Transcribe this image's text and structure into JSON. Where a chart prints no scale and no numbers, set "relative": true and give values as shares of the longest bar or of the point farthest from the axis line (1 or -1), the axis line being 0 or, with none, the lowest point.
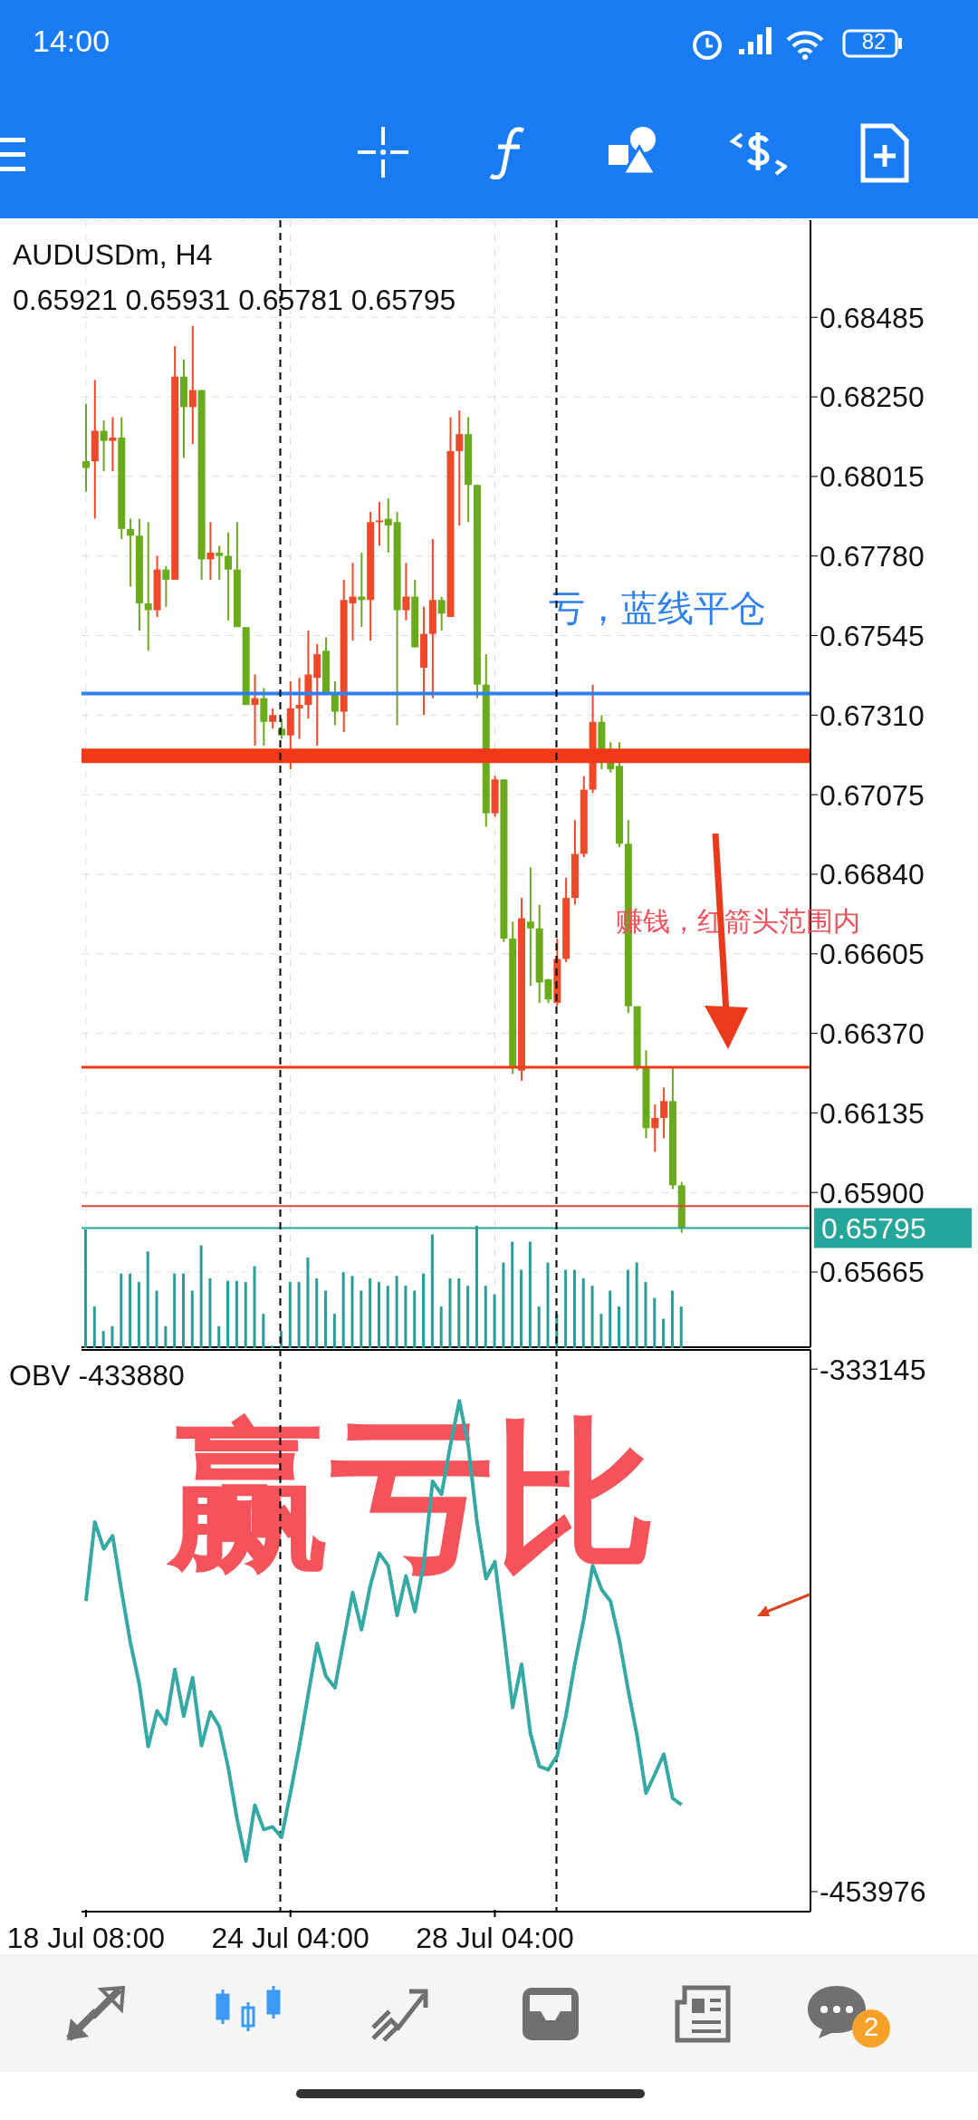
{
  "chart_data": [
    {
      "type": "candlestick",
      "title": "AUDUSDm, H4",
      "subtitle": "0.65921 0.65931 0.65781 0.65795",
      "categories": [
        null,
        null,
        null,
        null,
        null,
        null,
        null,
        null,
        null,
        null,
        null,
        null,
        null,
        null,
        null,
        null,
        null,
        null,
        null,
        null,
        null,
        null,
        null,
        null,
        null,
        null,
        null,
        null,
        null,
        null,
        null,
        null,
        null,
        null,
        null,
        null,
        null,
        null,
        null,
        null,
        null,
        null,
        null,
        null,
        null,
        null,
        null,
        null,
        null,
        null,
        null,
        null,
        null,
        null,
        null,
        null,
        null,
        null,
        null,
        null,
        null,
        null,
        null,
        null,
        null,
        null,
        null,
        null,
        null,
        null,
        null,
        null,
        null,
        null,
        null,
        null,
        null,
        null,
        null,
        null,
        null,
        null
      ],
      "ohlc": [
        [
          0.6806,
          0.6823,
          0.6797,
          0.6804
        ],
        [
          0.6806,
          0.683,
          0.6789,
          0.6815
        ],
        [
          0.6815,
          0.6818,
          0.6803,
          0.6812
        ],
        [
          0.6812,
          0.6819,
          0.6803,
          0.6813
        ],
        [
          0.6813,
          0.6819,
          0.6783,
          0.6786
        ],
        [
          0.6786,
          0.6789,
          0.6769,
          0.6784
        ],
        [
          0.6784,
          0.6789,
          0.6756,
          0.6764
        ],
        [
          0.6764,
          0.6788,
          0.675,
          0.6762
        ],
        [
          0.6762,
          0.6778,
          0.676,
          0.6774
        ],
        [
          0.6774,
          0.6775,
          0.6763,
          0.6771
        ],
        [
          0.6771,
          0.684,
          0.6771,
          0.6831
        ],
        [
          0.6831,
          0.6836,
          0.6807,
          0.6822
        ],
        [
          0.6822,
          0.6846,
          0.6811,
          0.6827
        ],
        [
          0.6827,
          0.6827,
          0.6771,
          0.6777
        ],
        [
          0.6777,
          0.6788,
          0.6771,
          0.6779
        ],
        [
          0.6779,
          0.6781,
          0.6771,
          0.6778
        ],
        [
          0.6778,
          0.6785,
          0.6759,
          0.6774
        ],
        [
          0.6774,
          0.6788,
          0.6757,
          0.6757
        ],
        [
          0.6757,
          0.6757,
          0.6734,
          0.6734
        ],
        [
          0.6734,
          0.6743,
          0.6722,
          0.6736
        ],
        [
          0.6736,
          0.6739,
          0.6722,
          0.6729
        ],
        [
          0.6729,
          0.6733,
          0.6727,
          0.6731
        ],
        [
          0.6727,
          0.673,
          0.6724,
          0.6725
        ],
        [
          0.6725,
          0.6741,
          0.6715,
          0.6733
        ],
        [
          0.6733,
          0.6742,
          0.6724,
          0.6734
        ],
        [
          0.6734,
          0.6756,
          0.673,
          0.6743
        ],
        [
          0.6742,
          0.6752,
          0.6722,
          0.6749
        ],
        [
          0.675,
          0.6754,
          0.6737,
          0.6737
        ],
        [
          0.6737,
          0.6741,
          0.6728,
          0.6732
        ],
        [
          0.6732,
          0.6771,
          0.6726,
          0.6765
        ],
        [
          0.6764,
          0.6776,
          0.6753,
          0.6766
        ],
        [
          0.6766,
          0.6779,
          0.6757,
          0.6765
        ],
        [
          0.6765,
          0.6791,
          0.6753,
          0.6788
        ],
        [
          0.6788,
          0.6794,
          0.6781,
          0.67885
        ],
        [
          0.6789,
          0.6795,
          0.6779,
          0.6787
        ],
        [
          0.6788,
          0.6791,
          0.6728,
          0.6762
        ],
        [
          0.6762,
          0.6776,
          0.6759,
          0.6766
        ],
        [
          0.6766,
          0.6771,
          0.6751,
          0.6751
        ],
        [
          0.6745,
          0.6763,
          0.6731,
          0.6755
        ],
        [
          0.6755,
          0.6783,
          0.6736,
          0.6765
        ],
        [
          0.6765,
          0.6766,
          0.6756,
          0.6761
        ],
        [
          0.676,
          0.6819,
          0.676,
          0.6809
        ],
        [
          0.6809,
          0.6821,
          0.6787,
          0.6814
        ],
        [
          0.6814,
          0.6819,
          0.6788,
          0.6799
        ],
        [
          0.6799,
          0.6799,
          0.6736,
          0.674
        ],
        [
          0.674,
          0.6749,
          0.6698,
          0.6702
        ],
        [
          0.6702,
          0.6713,
          0.6701,
          0.6712
        ],
        [
          0.6712,
          0.6712,
          0.6664,
          0.6665
        ],
        [
          0.6665,
          0.667,
          0.6625,
          0.6627
        ],
        [
          0.6626,
          0.6677,
          0.6623,
          0.6671
        ],
        [
          0.667,
          0.6686,
          0.6651,
          0.6668
        ],
        [
          0.6668,
          0.6675,
          0.6646,
          0.6652
        ],
        [
          0.6653,
          0.6653,
          0.6646,
          0.6647
        ],
        [
          0.6646,
          0.6665,
          0.6645,
          0.6659
        ],
        [
          0.6659,
          0.6683,
          0.6658,
          0.6677
        ],
        [
          0.6677,
          0.67,
          0.6675,
          0.669
        ],
        [
          0.669,
          0.6713,
          0.6689,
          0.6709
        ],
        [
          0.6709,
          0.674,
          0.6708,
          0.6729
        ],
        [
          0.6729,
          0.6731,
          0.6715,
          0.6721
        ],
        [
          0.6721,
          0.6723,
          0.6714,
          0.6715
        ],
        [
          0.6716,
          0.6723,
          0.6692,
          0.6693
        ],
        [
          0.6693,
          0.67,
          0.6643,
          0.6645
        ],
        [
          0.6645,
          0.6645,
          0.6626,
          0.6627
        ],
        [
          0.6627,
          0.6632,
          0.6606,
          0.6609
        ],
        [
          0.6609,
          0.6616,
          0.6602,
          0.6612
        ],
        [
          0.6612,
          0.6621,
          0.6606,
          0.6617
        ],
        [
          0.6617,
          0.6627,
          0.6591,
          0.65921
        ],
        [
          0.65921,
          0.65931,
          0.65781,
          0.65795
        ],
        null,
        null,
        null,
        null,
        null,
        null,
        null,
        null,
        null,
        null,
        null,
        null,
        null,
        null
      ],
      "colors": [
        "#6aab1c",
        "#ee4a2a",
        "#6aab1c",
        "#ee4a2a",
        "#6aab1c",
        "#6aab1c",
        "#6aab1c",
        "#6aab1c",
        "#ee4a2a",
        "#6aab1c",
        "#ee4a2a",
        "#6aab1c",
        "#ee4a2a",
        "#6aab1c",
        "#ee4a2a",
        "#6aab1c",
        "#6aab1c",
        "#6aab1c",
        "#6aab1c",
        "#ee4a2a",
        "#6aab1c",
        "#ee4a2a",
        "#6aab1c",
        "#ee4a2a",
        "#ee4a2a",
        "#ee4a2a",
        "#ee4a2a",
        "#6aab1c",
        "#6aab1c",
        "#ee4a2a",
        "#ee4a2a",
        "#6aab1c",
        "#ee4a2a",
        "#ee4a2a",
        "#6aab1c",
        "#6aab1c",
        "#ee4a2a",
        "#6aab1c",
        "#ee4a2a",
        "#ee4a2a",
        "#6aab1c",
        "#ee4a2a",
        "#ee4a2a",
        "#6aab1c",
        "#6aab1c",
        "#6aab1c",
        "#ee4a2a",
        "#6aab1c",
        "#6aab1c",
        "#ee4a2a",
        "#6aab1c",
        "#6aab1c",
        "#6aab1c",
        "#ee4a2a",
        "#ee4a2a",
        "#ee4a2a",
        "#ee4a2a",
        "#ee4a2a",
        "#6aab1c",
        "#6aab1c",
        "#6aab1c",
        "#6aab1c",
        "#6aab1c",
        "#6aab1c",
        "#ee4a2a",
        "#ee4a2a",
        "#6aab1c",
        "#6aab1c",
        null,
        null,
        null,
        null,
        null,
        null,
        null,
        null,
        null,
        null,
        null,
        null,
        null,
        null
      ],
      "ylim": [
        0.65443,
        0.68772
      ],
      "yticks": [
        {
          "value": 0.68485,
          "label": "0.68485"
        },
        {
          "value": 0.6825,
          "label": "0.68250"
        },
        {
          "value": 0.68015,
          "label": "0.68015"
        },
        {
          "value": 0.6778,
          "label": "0.67780"
        },
        {
          "value": 0.67545,
          "label": "0.67545"
        },
        {
          "value": 0.6731,
          "label": "0.67310"
        },
        {
          "value": 0.67075,
          "label": "0.67075"
        },
        {
          "value": 0.6684,
          "label": "0.66840"
        },
        {
          "value": 0.66605,
          "label": "0.66605"
        },
        {
          "value": 0.6637,
          "label": "0.66370"
        },
        {
          "value": 0.66135,
          "label": "0.66135"
        },
        {
          "value": 0.659,
          "label": "0.65900"
        },
        {
          "value": 0.65665,
          "label": "0.65665"
        }
      ],
      "grid": true,
      "tick_labels": "y",
      "ref_lines": [
        {
          "axis": "y",
          "value": 0.67374,
          "label": "亏，蓝线平仓",
          "color": "#2f80ed"
        },
        {
          "axis": "y",
          "value": 0.6719,
          "color": "#f03a17"
        },
        {
          "axis": "y",
          "value": 0.6627,
          "color": "#f03a17"
        },
        {
          "axis": "y",
          "value": 0.6586,
          "color": "#e0493a"
        },
        {
          "axis": "y",
          "value": 0.65795,
          "label": "0.65795",
          "color": "#26a69a"
        }
      ],
      "annotations": [
        "赚钱，红箭头范围内",
        "14:00",
        "82",
        "2"
      ]
    },
    {
      "type": "bar",
      "relative": true,
      "categories": [
        null,
        null,
        null,
        null,
        null,
        null,
        null,
        null,
        null,
        null,
        null,
        null,
        null,
        null,
        null,
        null,
        null,
        null,
        null,
        null,
        null,
        null,
        null,
        null,
        null,
        null,
        null,
        null,
        null,
        null,
        null,
        null,
        null,
        null,
        null,
        null,
        null,
        null,
        null,
        null,
        null,
        null,
        null,
        null,
        null,
        null,
        null,
        null,
        null,
        null,
        null,
        null,
        null,
        null,
        null,
        null,
        null,
        null,
        null,
        null,
        null,
        null,
        null,
        null,
        null,
        null,
        null,
        null,
        null,
        null,
        null,
        null,
        null,
        null,
        null,
        null,
        null,
        null,
        null,
        null,
        null,
        null
      ],
      "values": [
        0.97,
        0.34,
        0.14,
        0.18,
        0.61,
        0.61,
        0.54,
        0.79,
        0.47,
        0.18,
        0.61,
        0.61,
        0.47,
        0.84,
        0.57,
        0.18,
        0.55,
        0.55,
        0.54,
        0.67,
        0.28,
        0.02,
        0.14,
        0.54,
        0.54,
        0.74,
        0.57,
        0.47,
        0.28,
        0.62,
        0.59,
        0.47,
        0.57,
        0.54,
        0.51,
        0.59,
        0.51,
        0.47,
        0.61,
        0.93,
        0.34,
        0.57,
        0.57,
        0.51,
        1,
        0.51,
        0.44,
        0.7,
        0.87,
        0.64,
        0.87,
        0.34,
        0.7,
        0.28,
        0.64,
        0.64,
        0.57,
        0.51,
        0.28,
        0.47,
        0.34,
        0.64,
        0.7,
        0.54,
        0.41,
        0.24,
        0.47,
        0.34,
        null,
        null,
        null,
        null,
        null,
        null,
        null,
        null,
        null,
        null,
        null,
        null,
        null,
        null
      ],
      "color": "#2a9d97",
      "tick_labels": false
    },
    {
      "type": "line",
      "title": "OBV -433880",
      "categories": [
        "18 Jul 08:00",
        null,
        null,
        null,
        null,
        null,
        null,
        null,
        null,
        null,
        null,
        null,
        null,
        null,
        null,
        null,
        null,
        null,
        null,
        null,
        null,
        null,
        null,
        "24 Jul 04:00",
        null,
        null,
        null,
        null,
        null,
        null,
        null,
        null,
        null,
        null,
        null,
        null,
        null,
        null,
        null,
        null,
        null,
        null,
        null,
        null,
        null,
        null,
        "28 Jul 04:00",
        null,
        null,
        null,
        null,
        null,
        null,
        null,
        null,
        null,
        null,
        null,
        null,
        null,
        null,
        null,
        null,
        null,
        null,
        null,
        null,
        null,
        null,
        null,
        null,
        null,
        null,
        null,
        null,
        null,
        null,
        null,
        null,
        null,
        null,
        null
      ],
      "series": [
        {
          "color": "#35a9a4",
          "values": [
            -386800,
            -368500,
            -374700,
            -371700,
            -384400,
            -396400,
            -406000,
            -420400,
            -412200,
            -415200,
            -402600,
            -413400,
            -404500,
            -420200,
            -412400,
            -415800,
            -425200,
            -437200,
            -446900,
            -434000,
            -439600,
            -439000,
            -441400,
            -431200,
            -420400,
            -408400,
            -396600,
            -404200,
            -406800,
            -395800,
            -384800,
            -393400,
            -383100,
            -375700,
            -378600,
            -390100,
            -381000,
            -389200,
            -378100,
            -359100,
            -362100,
            -350700,
            -340500,
            -350700,
            -368700,
            -381600,
            -377700,
            -394000,
            -411400,
            -401400,
            -417400,
            -425000,
            -425800,
            -422600,
            -413200,
            -401200,
            -391000,
            -378600,
            -384100,
            -386800,
            -395800,
            -407400,
            -418000,
            -431200,
            -426800,
            -422200,
            -432400,
            -433880,
            null,
            null,
            null,
            null,
            null,
            null,
            null,
            null,
            null,
            null,
            null,
            null,
            null,
            null
          ]
        }
      ],
      "ylim": [
        -458600,
        -328700
      ],
      "yticks": [
        -333145,
        -453976
      ],
      "annotations": [
        "赢亏比"
      ]
    }
  ]
}
